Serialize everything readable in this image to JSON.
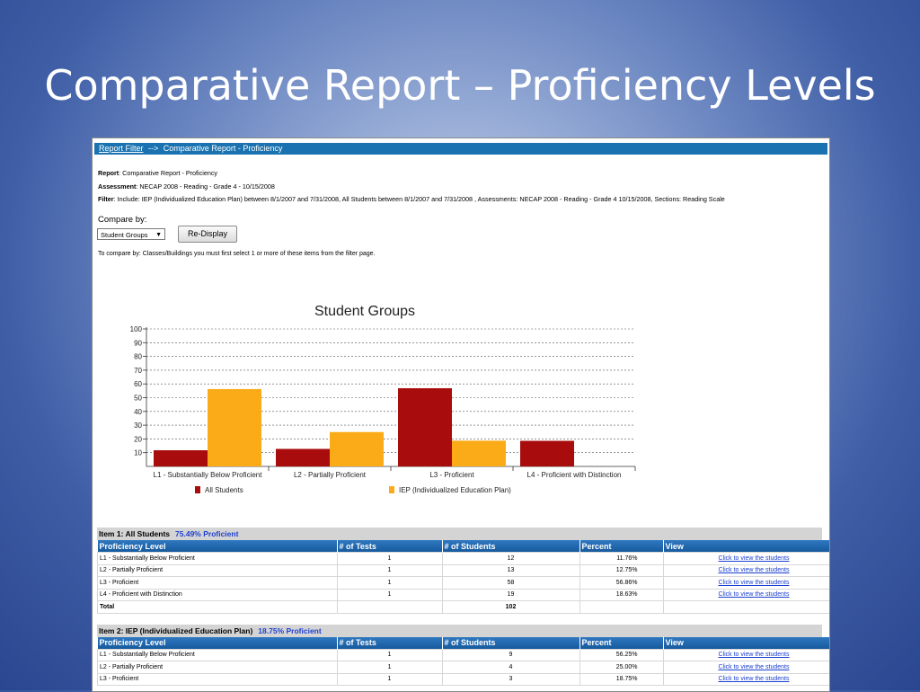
{
  "slide": {
    "title": "Comparative Report – Proficiency Levels"
  },
  "nav": {
    "link": "Report Filter",
    "arrow": "-->",
    "current": "Comparative Report - Proficiency"
  },
  "meta": {
    "report_label": "Report",
    "report_value": ": Comparative Report - Proficiency",
    "assessment_label": "Assessment",
    "assessment_value": ": NECAP 2008 - Reading - Grade 4 - 10/15/2008",
    "filter_label": "Filter",
    "filter_value": ": Include: IEP (Individualized Education Plan) between 8/1/2007 and 7/31/2008, All Students between 8/1/2007 and 7/31/2008 , Assessments: NECAP 2008 - Reading - Grade 4 10/15/2008, Sections: Reading Scale"
  },
  "compare": {
    "label": "Compare by:",
    "selected": "Student Groups",
    "button": "Re-Display",
    "note": "To compare by: Classes/Buildings you must first select 1 or more of these items from the filter page."
  },
  "chart_data": {
    "type": "bar",
    "title": "Student Groups",
    "categories": [
      "L1 - Substantially Below Proficient",
      "L2 - Partially Proficient",
      "L3 - Proficient",
      "L4 - Proficient with Distinction"
    ],
    "series": [
      {
        "name": "All Students",
        "values": [
          11.76,
          12.75,
          56.86,
          18.63
        ],
        "color": "#a80c0c"
      },
      {
        "name": "IEP (Individualized Education Plan)",
        "values": [
          56.25,
          25.0,
          18.75,
          0
        ],
        "color": "#fbaa18"
      }
    ],
    "ylim": [
      0,
      100
    ],
    "yticks": [
      10,
      20,
      30,
      40,
      50,
      60,
      70,
      80,
      90,
      100
    ],
    "grid": true,
    "legend": "bottom"
  },
  "tables": {
    "headers": [
      "Proficiency Level",
      "# of Tests",
      "# of Students",
      "Percent",
      "View"
    ],
    "items": [
      {
        "title": "Item 1: All Students",
        "pct": "75.49% Proficient",
        "rows": [
          {
            "level": "L1 - Substantially Below Proficient",
            "tests": "1",
            "students": "12",
            "percent": "11.76%",
            "view": "Click to view the students"
          },
          {
            "level": "L2 - Partially Proficient",
            "tests": "1",
            "students": "13",
            "percent": "12.75%",
            "view": "Click to view the students"
          },
          {
            "level": "L3 - Proficient",
            "tests": "1",
            "students": "58",
            "percent": "56.86%",
            "view": "Click to view the students"
          },
          {
            "level": "L4 - Proficient with Distinction",
            "tests": "1",
            "students": "19",
            "percent": "18.63%",
            "view": "Click to view the students"
          }
        ],
        "total_label": "Total",
        "total_students": "102"
      },
      {
        "title": "Item 2: IEP (Individualized Education Plan)",
        "pct": "18.75% Proficient",
        "rows": [
          {
            "level": "L1 - Substantially Below Proficient",
            "tests": "1",
            "students": "9",
            "percent": "56.25%",
            "view": "Click to view the students"
          },
          {
            "level": "L2 - Partially Proficient",
            "tests": "1",
            "students": "4",
            "percent": "25.00%",
            "view": "Click to view the students"
          },
          {
            "level": "L3 - Proficient",
            "tests": "1",
            "students": "3",
            "percent": "18.75%",
            "view": "Click to view the students"
          }
        ]
      }
    ]
  }
}
